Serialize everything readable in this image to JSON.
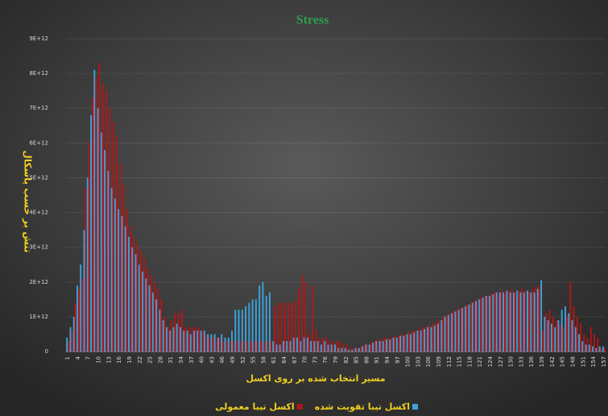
{
  "chart_data": {
    "type": "bar",
    "title": "Stress",
    "y_label": "تنش بر حسب پاسکال",
    "x_label": "مسیر انتخاب شده بر روی اکسل",
    "categories": [
      1,
      null,
      null,
      4,
      null,
      null,
      7,
      null,
      null,
      10,
      null,
      null,
      13,
      null,
      null,
      16,
      null,
      null,
      19,
      null,
      null,
      22,
      null,
      null,
      25,
      null,
      null,
      28,
      null,
      null,
      31,
      null,
      null,
      34,
      null,
      null,
      37,
      null,
      null,
      40,
      null,
      null,
      43,
      null,
      null,
      46,
      null,
      null,
      49,
      null,
      null,
      52,
      null,
      null,
      55,
      null,
      null,
      58,
      null,
      null,
      61,
      null,
      null,
      64,
      null,
      null,
      67,
      null,
      null,
      70,
      null,
      null,
      73,
      null,
      null,
      76,
      null,
      null,
      79,
      null,
      null,
      82,
      null,
      null,
      85,
      null,
      null,
      88,
      null,
      null,
      91,
      null,
      null,
      94,
      null,
      null,
      97,
      null,
      null,
      100,
      null,
      null,
      103,
      null,
      null,
      106,
      null,
      null,
      109,
      null,
      null,
      112,
      null,
      null,
      115,
      null,
      null,
      118,
      null,
      null,
      121,
      null,
      null,
      124,
      null,
      null,
      127,
      null,
      null,
      130,
      null,
      null,
      133,
      null,
      null,
      136,
      null,
      null,
      139,
      null,
      null,
      142,
      null,
      null,
      145,
      null,
      null,
      148,
      null,
      null,
      151,
      null,
      null,
      154,
      null,
      null,
      157
    ],
    "series": [
      {
        "name": "اکسل تیبا تقویت شده",
        "color": "#3ba3dc",
        "values": [
          400000000000.0,
          700000000000.0,
          1000000000000.0,
          1900000000000.0,
          2500000000000.0,
          3500000000000.0,
          5000000000000.0,
          6800000000000.0,
          8100000000000.0,
          7000000000000.0,
          6300000000000.0,
          5800000000000.0,
          5200000000000.0,
          4700000000000.0,
          4400000000000.0,
          4100000000000.0,
          3900000000000.0,
          3600000000000.0,
          3300000000000.0,
          3000000000000.0,
          2800000000000.0,
          2500000000000.0,
          2300000000000.0,
          2100000000000.0,
          1900000000000.0,
          1700000000000.0,
          1500000000000.0,
          1200000000000.0,
          900000000000.0,
          700000000000.0,
          600000000000.0,
          700000000000.0,
          800000000000.0,
          700000000000.0,
          600000000000.0,
          600000000000.0,
          500000000000.0,
          600000000000.0,
          600000000000.0,
          600000000000.0,
          600000000000.0,
          500000000000.0,
          500000000000.0,
          500000000000.0,
          400000000000.0,
          500000000000.0,
          400000000000.0,
          400000000000.0,
          600000000000.0,
          1200000000000.0,
          1200000000000.0,
          1200000000000.0,
          1300000000000.0,
          1400000000000.0,
          1500000000000.0,
          1500000000000.0,
          1900000000000.0,
          2000000000000.0,
          1600000000000.0,
          1700000000000.0,
          300000000000.0,
          200000000000.0,
          200000000000.0,
          300000000000.0,
          300000000000.0,
          300000000000.0,
          400000000000.0,
          400000000000.0,
          300000000000.0,
          400000000000.0,
          400000000000.0,
          300000000000.0,
          300000000000.0,
          300000000000.0,
          200000000000.0,
          300000000000.0,
          200000000000.0,
          200000000000.0,
          200000000000.0,
          100000000000.0,
          100000000000.0,
          100000000000.0,
          50000000000.0,
          50000000000.0,
          100000000000.0,
          100000000000.0,
          150000000000.0,
          200000000000.0,
          200000000000.0,
          250000000000.0,
          300000000000.0,
          300000000000.0,
          300000000000.0,
          350000000000.0,
          350000000000.0,
          400000000000.0,
          400000000000.0,
          450000000000.0,
          450000000000.0,
          500000000000.0,
          500000000000.0,
          550000000000.0,
          600000000000.0,
          600000000000.0,
          650000000000.0,
          700000000000.0,
          700000000000.0,
          750000000000.0,
          800000000000.0,
          900000000000.0,
          1000000000000.0,
          1050000000000.0,
          1100000000000.0,
          1150000000000.0,
          1200000000000.0,
          1250000000000.0,
          1300000000000.0,
          1350000000000.0,
          1400000000000.0,
          1450000000000.0,
          1500000000000.0,
          1550000000000.0,
          1600000000000.0,
          1600000000000.0,
          1650000000000.0,
          1700000000000.0,
          1700000000000.0,
          1700000000000.0,
          1750000000000.0,
          1700000000000.0,
          1700000000000.0,
          1750000000000.0,
          1700000000000.0,
          1700000000000.0,
          1750000000000.0,
          1700000000000.0,
          1700000000000.0,
          1800000000000.0,
          2050000000000.0,
          1000000000000.0,
          900000000000.0,
          800000000000.0,
          700000000000.0,
          900000000000.0,
          1200000000000.0,
          1300000000000.0,
          1100000000000.0,
          900000000000.0,
          700000000000.0,
          500000000000.0,
          300000000000.0,
          200000000000.0,
          200000000000.0,
          150000000000.0,
          100000000000.0,
          150000000000.0,
          150000000000.0
        ]
      },
      {
        "name": "اکسل تیبا معمولی",
        "color": "#b01818",
        "values": [
          300000000000.0,
          600000000000.0,
          1400000000000.0,
          1800000000000.0,
          2100000000000.0,
          4700000000000.0,
          6000000000000.0,
          7300000000000.0,
          7900000000000.0,
          8300000000000.0,
          7700000000000.0,
          7500000000000.0,
          7000000000000.0,
          6600000000000.0,
          6200000000000.0,
          5400000000000.0,
          4800000000000.0,
          4100000000000.0,
          3600000000000.0,
          3300000000000.0,
          3100000000000.0,
          2900000000000.0,
          2700000000000.0,
          2400000000000.0,
          2200000000000.0,
          2000000000000.0,
          1800000000000.0,
          1500000000000.0,
          1000000000000.0,
          700000000000.0,
          900000000000.0,
          1100000000000.0,
          1100000000000.0,
          1200000000000.0,
          700000000000.0,
          700000000000.0,
          700000000000.0,
          700000000000.0,
          700000000000.0,
          600000000000.0,
          500000000000.0,
          400000000000.0,
          400000000000.0,
          400000000000.0,
          400000000000.0,
          300000000000.0,
          300000000000.0,
          300000000000.0,
          300000000000.0,
          300000000000.0,
          300000000000.0,
          300000000000.0,
          300000000000.0,
          300000000000.0,
          300000000000.0,
          300000000000.0,
          300000000000.0,
          300000000000.0,
          300000000000.0,
          300000000000.0,
          1300000000000.0,
          1400000000000.0,
          1400000000000.0,
          1400000000000.0,
          1400000000000.0,
          1400000000000.0,
          1500000000000.0,
          1800000000000.0,
          2200000000000.0,
          2000000000000.0,
          500000000000.0,
          1900000000000.0,
          600000000000.0,
          400000000000.0,
          400000000000.0,
          400000000000.0,
          300000000000.0,
          300000000000.0,
          300000000000.0,
          300000000000.0,
          200000000000.0,
          200000000000.0,
          100000000000.0,
          100000000000.0,
          100000000000.0,
          150000000000.0,
          200000000000.0,
          200000000000.0,
          250000000000.0,
          300000000000.0,
          350000000000.0,
          350000000000.0,
          400000000000.0,
          400000000000.0,
          400000000000.0,
          450000000000.0,
          450000000000.0,
          500000000000.0,
          500000000000.0,
          550000000000.0,
          600000000000.0,
          600000000000.0,
          650000000000.0,
          700000000000.0,
          700000000000.0,
          750000000000.0,
          800000000000.0,
          850000000000.0,
          900000000000.0,
          1000000000000.0,
          1050000000000.0,
          1100000000000.0,
          1150000000000.0,
          1200000000000.0,
          1250000000000.0,
          1300000000000.0,
          1350000000000.0,
          1400000000000.0,
          1450000000000.0,
          1500000000000.0,
          1550000000000.0,
          1600000000000.0,
          1600000000000.0,
          1650000000000.0,
          1700000000000.0,
          1700000000000.0,
          1750000000000.0,
          1700000000000.0,
          1750000000000.0,
          1800000000000.0,
          1700000000000.0,
          1750000000000.0,
          1800000000000.0,
          1750000000000.0,
          1700000000000.0,
          1800000000000.0,
          1850000000000.0,
          1900000000000.0,
          600000000000.0,
          1100000000000.0,
          1200000000000.0,
          1000000000000.0,
          900000000000.0,
          800000000000.0,
          700000000000.0,
          1000000000000.0,
          2000000000000.0,
          1300000000000.0,
          1000000000000.0,
          800000000000.0,
          500000000000.0,
          400000000000.0,
          700000000000.0,
          500000000000.0,
          400000000000.0,
          100000000000.0,
          100000000000.0
        ]
      }
    ],
    "ylim": [
      0,
      9000000000000.0
    ],
    "yticks": [
      0,
      {
        "value": 1000000000000.0,
        "label": "1E+12"
      },
      {
        "value": 2000000000000.0,
        "label": "2E+12"
      },
      {
        "value": 3000000000000.0,
        "label": "3E+12"
      },
      {
        "value": 4000000000000.0,
        "label": "4E+12"
      },
      {
        "value": 5000000000000.0,
        "label": "5E+12"
      },
      {
        "value": 6000000000000.0,
        "label": "6E+12"
      },
      {
        "value": 7000000000000.0,
        "label": "7E+12"
      },
      {
        "value": 8000000000000.0,
        "label": "8E+12"
      },
      {
        "value": 9000000000000.0,
        "label": "9E+12"
      }
    ],
    "grid": true
  }
}
